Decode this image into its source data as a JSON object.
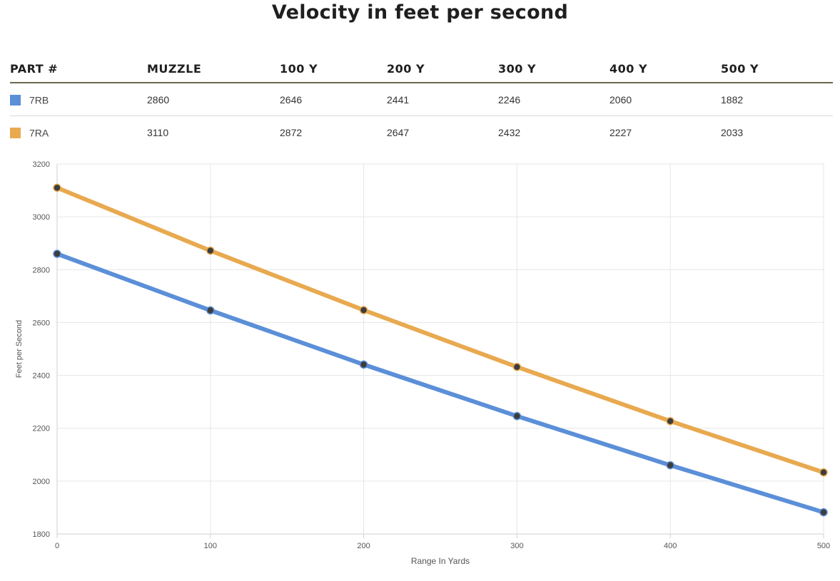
{
  "title": "Velocity in feet per second",
  "table": {
    "headers": [
      "PART #",
      "MUZZLE",
      "100 Y",
      "200 Y",
      "300 Y",
      "400 Y",
      "500 Y"
    ],
    "rows": [
      {
        "part": "7RB",
        "color": "#5b8fd8",
        "values": [
          "2860",
          "2646",
          "2441",
          "2246",
          "2060",
          "1882"
        ]
      },
      {
        "part": "7RA",
        "color": "#e8a94f",
        "values": [
          "3110",
          "2872",
          "2647",
          "2432",
          "2227",
          "2033"
        ]
      }
    ]
  },
  "chart_data": {
    "type": "line",
    "x": [
      0,
      100,
      200,
      300,
      400,
      500
    ],
    "series": [
      {
        "name": "7RB",
        "color": "#5b8fd8",
        "values": [
          2860,
          2646,
          2441,
          2246,
          2060,
          1882
        ]
      },
      {
        "name": "7RA",
        "color": "#e8a94f",
        "values": [
          3110,
          2872,
          2647,
          2432,
          2227,
          2033
        ]
      }
    ],
    "xlabel": "Range In Yards",
    "ylabel": "Feet per Second",
    "xlim": [
      0,
      500
    ],
    "ylim": [
      1800,
      3200
    ],
    "xticks": [
      0,
      100,
      200,
      300,
      400,
      500
    ],
    "yticks": [
      1800,
      2000,
      2200,
      2400,
      2600,
      2800,
      3000,
      3200
    ],
    "grid": true,
    "marker_color": "#3d3d3d"
  }
}
